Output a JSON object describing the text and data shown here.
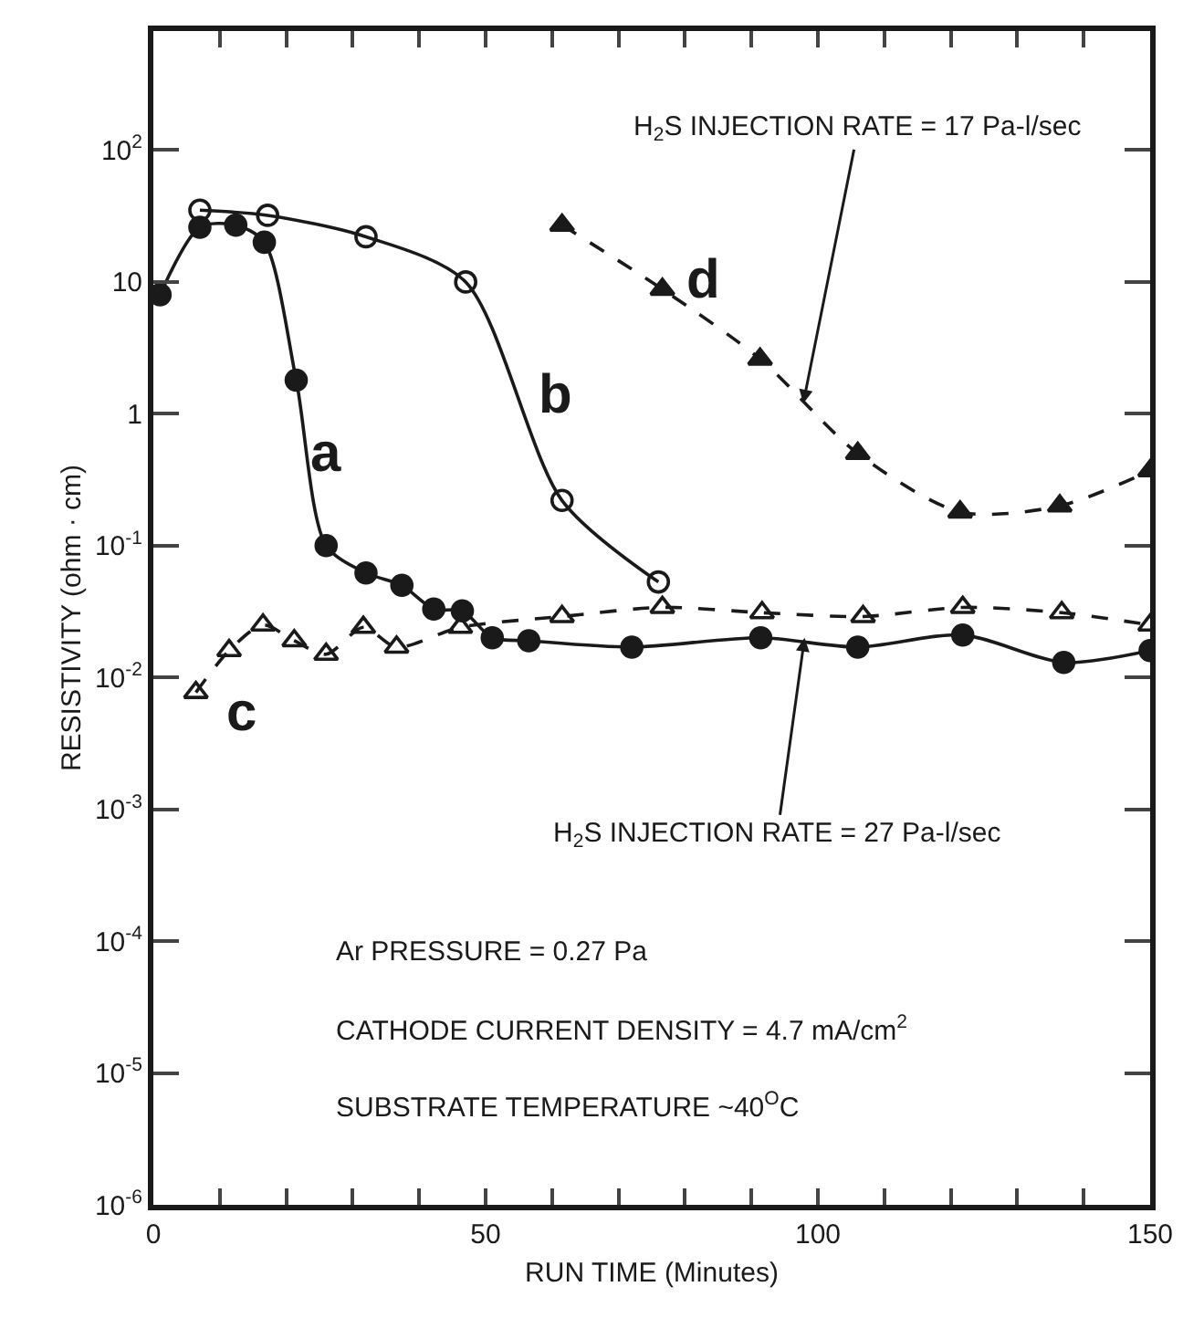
{
  "chart_data": {
    "type": "line",
    "xlabel": "RUN TIME (Minutes)",
    "ylabel": "RESISTIVITY (ohm · cm)",
    "xlim": [
      0,
      150
    ],
    "xticks": [
      0,
      {
        "value": 10,
        "label": null
      },
      {
        "value": 20,
        "label": null
      },
      {
        "value": 30,
        "label": null
      },
      {
        "value": 40,
        "label": null
      },
      50,
      {
        "value": 60,
        "label": null
      },
      {
        "value": 70,
        "label": null
      },
      {
        "value": 80,
        "label": null
      },
      {
        "value": 90,
        "label": null
      },
      100,
      {
        "value": 110,
        "label": null
      },
      {
        "value": 120,
        "label": null
      },
      {
        "value": 130,
        "label": null
      },
      {
        "value": 140,
        "label": null
      },
      150
    ],
    "ylim": [
      1e-06,
      800
    ],
    "yticks": [
      {
        "value": 1e-06,
        "label": "10$^{-6}$"
      },
      {
        "value": 1e-05,
        "label": "10$^{-5}$"
      },
      {
        "value": 0.0001,
        "label": "10$^{-4}$"
      },
      {
        "value": 0.001,
        "label": "10$^{-3}$"
      },
      {
        "value": 0.01,
        "label": "10$^{-2}$"
      },
      {
        "value": 0.1,
        "label": "10$^{-1}$"
      },
      1,
      10,
      {
        "value": 100,
        "label": "10$^{2}$"
      }
    ],
    "log": "y",
    "grid": false,
    "legend": false,
    "series": [
      {
        "name": "a",
        "color": "#1a1a1a",
        "marker": "circle",
        "line_style": "solid",
        "x": [
          1,
          7,
          12.4,
          16.7,
          21.5,
          26,
          32,
          37.4,
          42.2,
          46.5,
          51,
          56.5,
          72,
          91.4,
          106,
          121.8,
          137,
          150
        ],
        "values": [
          8,
          26,
          27,
          20,
          1.8,
          0.1,
          0.062,
          0.05,
          0.033,
          0.032,
          0.02,
          0.019,
          0.017,
          0.02,
          0.017,
          0.021,
          0.013,
          0.016
        ]
      },
      {
        "name": "b",
        "color": "#1a1a1a",
        "marker": "circle-open",
        "line_style": "solid",
        "x": [
          7,
          17.2,
          32,
          47,
          61.5,
          76
        ],
        "values": [
          35,
          32,
          22,
          10,
          0.22,
          0.053
        ]
      },
      {
        "name": "c",
        "color": "#1a1a1a",
        "marker": "triangle-open",
        "line_style": "dashed",
        "x": [
          6.4,
          11.4,
          16.5,
          21.2,
          26,
          31.6,
          36.6,
          46.2,
          61.5,
          76.6,
          91.6,
          106.8,
          121.8,
          136.7,
          150
        ],
        "values": [
          0.0077,
          0.016,
          0.025,
          0.019,
          0.015,
          0.024,
          0.017,
          0.024,
          0.029,
          0.034,
          0.031,
          0.029,
          0.034,
          0.031,
          0.025
        ]
      },
      {
        "name": "d",
        "color": "#1a1a1a",
        "marker": "triangle",
        "line_style": "dashed",
        "x": [
          61.5,
          76.6,
          91.3,
          106,
          121.4,
          136.4,
          150
        ],
        "values": [
          27,
          8.8,
          2.6,
          0.5,
          0.18,
          0.2,
          0.37
        ]
      }
    ],
    "annotations": [
      {
        "text": "H$_{2}$S INJECTION RATE = 17 Pa-l/sec",
        "x": 97.8,
        "y": 1.2
      },
      {
        "text": "H$_{2}$S INJECTION RATE = 27 Pa-l/sec",
        "x": 98,
        "y": 0.02
      },
      "Ar PRESSURE = 0.27 Pa",
      "CATHODE CURRENT DENSITY = 4.7 mA/cm$^{2}$",
      "SUBSTRATE TEMPERATURE ~40$^{O}$C"
    ]
  }
}
